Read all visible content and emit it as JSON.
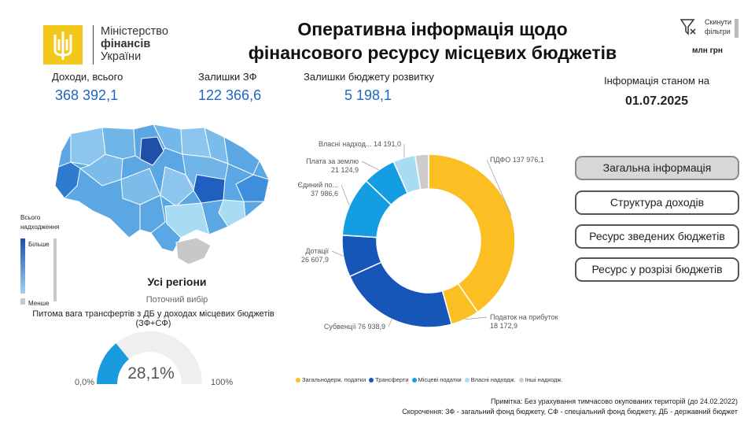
{
  "header": {
    "logo": {
      "line1": "Міністерство",
      "line2": "фінансів",
      "line3": "України"
    },
    "title_line1": "Оперативна інформація щодо",
    "title_line2": "фінансового ресурсу місцевих бюджетів",
    "reset_label_line1": "Скинути",
    "reset_label_line2": "фільтри",
    "units": "млн грн"
  },
  "kpis": [
    {
      "label": "Доходи, всього",
      "value": "368 392,1"
    },
    {
      "label": "Залишки ЗФ",
      "value": "122 366,6"
    },
    {
      "label": "Залишки бюджету розвитку",
      "value": "5 198,1"
    }
  ],
  "asof": {
    "label": "Інформація станом на",
    "date": "01.07.2025"
  },
  "nav": [
    {
      "label": "Загальна інформація",
      "active": true
    },
    {
      "label": "Структура доходів",
      "active": false
    },
    {
      "label": "Ресурс зведених бюджетів",
      "active": false
    },
    {
      "label": "Ресурс у розрізі бюджетів",
      "active": false
    }
  ],
  "map": {
    "legend_title_line1": "Всього",
    "legend_title_line2": "надходження",
    "legend_high": "Більше",
    "legend_low": "Менше",
    "region_title": "Усі регіони",
    "region_sub": "Поточний вибір"
  },
  "gauge": {
    "title_line1": "Питома вага трансфертів з ДБ у доходах місцевих бюджетів",
    "title_line2": "(ЗФ+СФ)",
    "value_label": "28,1%",
    "value": 28.1,
    "min_label": "0,0%",
    "max_label": "100%",
    "fill_color": "#1a9be0",
    "track_color": "#efefef"
  },
  "chart_data": {
    "type": "pie",
    "subtype": "donut",
    "slices": [
      {
        "label": "ПДФО",
        "value_label": "137 976,1",
        "value": 137976.1,
        "color": "#fbbf24"
      },
      {
        "label": "Податок на прибуток",
        "value_label": "18 172,9",
        "value": 18172.9,
        "color": "#fbbf24"
      },
      {
        "label": "Субвенції",
        "value_label": "76 938,9",
        "value": 76938.9,
        "color": "#1556b8"
      },
      {
        "label": "Дотації",
        "value_label": "26 607,9",
        "value": 26607.9,
        "color": "#1556b8"
      },
      {
        "label": "Єдиний по...",
        "value_label": "37 986,6",
        "value": 37986.6,
        "color": "#149de0"
      },
      {
        "label": "Плата за землю",
        "value_label": "21 124,9",
        "value": 21124.9,
        "color": "#149de0"
      },
      {
        "label": "Власні надход...",
        "value_label": "14 191,0",
        "value": 14191.0,
        "color": "#a8dcf5"
      },
      {
        "label": "",
        "value_label": "",
        "value": 8500,
        "color": "#cccccc"
      }
    ],
    "legend": [
      {
        "label": "Загальнодерж. податки",
        "color": "#fbbf24"
      },
      {
        "label": "Трансферти",
        "color": "#1556b8"
      },
      {
        "label": "Місцеві податки",
        "color": "#149de0"
      },
      {
        "label": "Власні надходж.",
        "color": "#a8dcf5"
      },
      {
        "label": "Інші надходж.",
        "color": "#cccccc"
      }
    ]
  },
  "notes": {
    "note1": "Примітка: Без урахування тимчасово окупованих територій (до 24.02.2022)",
    "note2": "Скорочення: ЗФ - загальний фонд бюджету, СФ - спеціальний фонд бюджету, ДБ - державний бюджет"
  }
}
